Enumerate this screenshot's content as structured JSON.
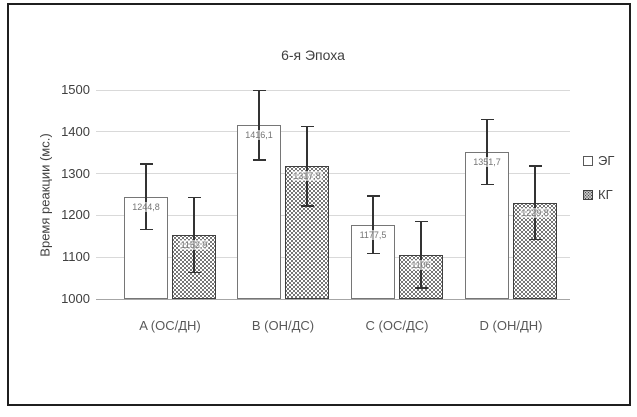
{
  "chart_data": {
    "type": "bar",
    "title": "6-я Эпоха",
    "ylabel": "Время реакции (мс.)",
    "xlabel": "",
    "categories": [
      "A (ОС/ДН)",
      "B (ОН/ДС)",
      "C (ОС/ДС)",
      "D (ОН/ДН)"
    ],
    "series": [
      {
        "name": "ЭГ",
        "style": "plain",
        "values": [
          1244.8,
          1416.1,
          1177.5,
          1351.7
        ],
        "labels": [
          "1244,8",
          "1416,1",
          "1177,5",
          "1351,7"
        ],
        "errors": [
          78,
          83,
          69,
          78
        ]
      },
      {
        "name": "КГ",
        "style": "dotted",
        "values": [
          1152.9,
          1317.8,
          1106,
          1229.8
        ],
        "labels": [
          "1152,9",
          "1317,8",
          "1106",
          "1229,8"
        ],
        "errors": [
          90,
          95,
          80,
          88
        ]
      }
    ],
    "ylim": [
      1000,
      1500
    ],
    "ytick_step": 100,
    "ytick_labels": [
      "1000",
      "1100",
      "1200",
      "1300",
      "1400",
      "1500"
    ],
    "grid": true,
    "error_bars": true,
    "legend_position": "right"
  },
  "colors": {
    "frame": "#1f1f1f",
    "gridline": "#d9d9d9",
    "axis_line": "#a6a6a6",
    "bar_fill": "#ffffff",
    "bar_outline_eg": "#767676",
    "bar_outline_kg": "#3f3f3f",
    "error_bar": "#333333",
    "title_text": "#3f3f3f",
    "tick_text": "#404040",
    "category_text": "#595959",
    "data_label_text": "#757575"
  }
}
